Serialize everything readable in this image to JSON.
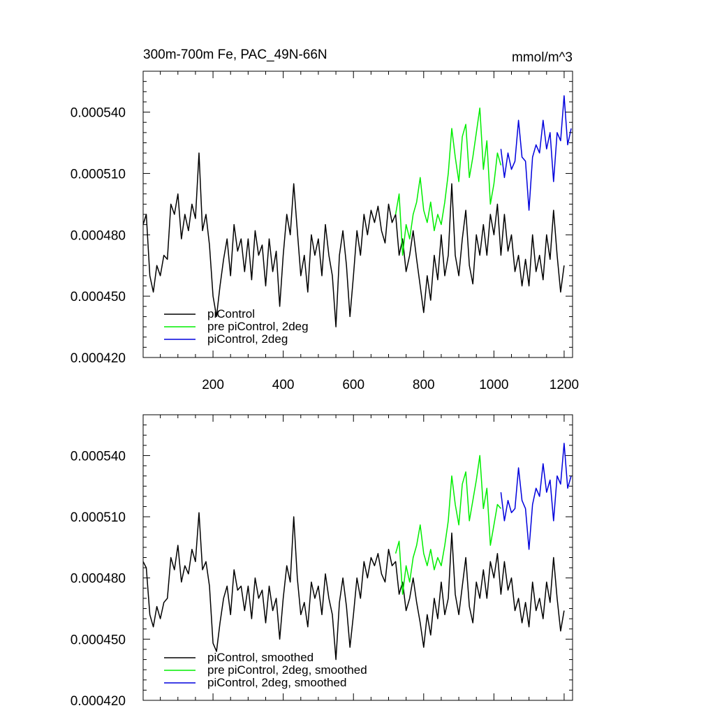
{
  "title_left": "300m-700m Fe, PAC_49N-66N",
  "title_right": "mmol/m^3",
  "colors": {
    "piControl": "#000000",
    "pre": "#00ee00",
    "twodeg": "#0000dd"
  },
  "chart_data": [
    {
      "type": "line",
      "xlim": [
        1,
        1224
      ],
      "ylim": [
        0.00042,
        0.00056
      ],
      "yticks": [
        0.00042,
        0.00045,
        0.00048,
        0.00051,
        0.00054
      ],
      "ytick_labels": [
        "0.000420",
        "0.000450",
        "0.000480",
        "0.000510",
        "0.000540"
      ],
      "xticks": [
        200,
        400,
        600,
        800,
        1000,
        1200
      ],
      "xtick_labels": [
        "200",
        "400",
        "600",
        "800",
        "1000",
        "1200"
      ],
      "legend": [
        "piControl",
        "pre piControl, 2deg",
        "piControl, 2deg"
      ],
      "series": [
        {
          "name": "piControl",
          "color": "#000000",
          "x": [
            1,
            10,
            20,
            30,
            40,
            50,
            60,
            70,
            80,
            90,
            100,
            110,
            120,
            130,
            140,
            150,
            160,
            170,
            180,
            190,
            200,
            210,
            220,
            230,
            240,
            250,
            260,
            270,
            280,
            290,
            300,
            310,
            320,
            330,
            340,
            350,
            360,
            370,
            380,
            390,
            400,
            410,
            420,
            430,
            440,
            450,
            460,
            470,
            480,
            490,
            500,
            510,
            520,
            530,
            540,
            550,
            560,
            570,
            580,
            590,
            600,
            610,
            620,
            630,
            640,
            650,
            660,
            670,
            680,
            690,
            700,
            710,
            720,
            730,
            740,
            750,
            760,
            770,
            780,
            790,
            800,
            810,
            820,
            830,
            840,
            850,
            860,
            870,
            880,
            890,
            900,
            910,
            920,
            930,
            940,
            950,
            960,
            970,
            980,
            990,
            1000,
            1010,
            1020,
            1030,
            1040,
            1050,
            1060,
            1070,
            1080,
            1090,
            1100,
            1110,
            1120,
            1130,
            1140,
            1150,
            1160,
            1170,
            1180,
            1190,
            1200
          ],
          "y": [
            0.000485,
            0.00049,
            0.00046,
            0.000452,
            0.000465,
            0.00046,
            0.00047,
            0.000468,
            0.000495,
            0.00049,
            0.0005,
            0.000478,
            0.00049,
            0.000482,
            0.000495,
            0.000488,
            0.00052,
            0.000482,
            0.00049,
            0.000475,
            0.00045,
            0.00044,
            0.000455,
            0.000468,
            0.000478,
            0.00046,
            0.000485,
            0.000472,
            0.000478,
            0.000462,
            0.000478,
            0.000458,
            0.000482,
            0.00047,
            0.000475,
            0.000455,
            0.000478,
            0.000462,
            0.000472,
            0.000445,
            0.00047,
            0.00049,
            0.00048,
            0.000505,
            0.000482,
            0.00046,
            0.00047,
            0.000452,
            0.00048,
            0.00047,
            0.000478,
            0.00046,
            0.000485,
            0.00047,
            0.00046,
            0.000435,
            0.00047,
            0.000482,
            0.000465,
            0.00044,
            0.00046,
            0.000482,
            0.00047,
            0.00049,
            0.00048,
            0.000492,
            0.000486,
            0.000494,
            0.000482,
            0.000476,
            0.000495,
            0.000486,
            0.00049,
            0.00047,
            0.000478,
            0.000462,
            0.00047,
            0.000482,
            0.000468,
            0.000455,
            0.000442,
            0.00046,
            0.000448,
            0.00047,
            0.000458,
            0.00048,
            0.00046,
            0.00047,
            0.000505,
            0.00047,
            0.00046,
            0.000478,
            0.000492,
            0.000465,
            0.000456,
            0.00048,
            0.00047,
            0.000485,
            0.00047,
            0.00049,
            0.00048,
            0.000495,
            0.00047,
            0.00049,
            0.000472,
            0.00048,
            0.000462,
            0.00047,
            0.000455,
            0.000468,
            0.000455,
            0.00048,
            0.000462,
            0.00047,
            0.000458,
            0.00048,
            0.000468,
            0.000492,
            0.00047,
            0.000452,
            0.000465
          ]
        },
        {
          "name": "pre piControl, 2deg",
          "color": "#00ee00",
          "x": [
            720,
            730,
            740,
            750,
            760,
            770,
            780,
            790,
            800,
            810,
            820,
            830,
            840,
            850,
            860,
            870,
            880,
            890,
            900,
            910,
            920,
            930,
            940,
            950,
            960,
            970,
            980,
            990,
            1000,
            1010,
            1020
          ],
          "y": [
            0.00049,
            0.0005,
            0.00047,
            0.000485,
            0.000478,
            0.00049,
            0.000496,
            0.000508,
            0.000492,
            0.000486,
            0.000496,
            0.000482,
            0.00049,
            0.000485,
            0.000496,
            0.00051,
            0.000532,
            0.000518,
            0.000506,
            0.000528,
            0.000534,
            0.000508,
            0.000518,
            0.00053,
            0.000542,
            0.000512,
            0.000526,
            0.000495,
            0.000505,
            0.00052,
            0.000514
          ]
        },
        {
          "name": "piControl, 2deg",
          "color": "#0000dd",
          "x": [
            1020,
            1030,
            1040,
            1050,
            1060,
            1070,
            1080,
            1090,
            1100,
            1110,
            1120,
            1130,
            1140,
            1150,
            1160,
            1170,
            1180,
            1190,
            1200,
            1210,
            1220
          ],
          "y": [
            0.000522,
            0.000508,
            0.00052,
            0.000512,
            0.000516,
            0.000536,
            0.000518,
            0.000516,
            0.000492,
            0.000518,
            0.000524,
            0.00052,
            0.000536,
            0.000522,
            0.00053,
            0.000506,
            0.00053,
            0.000526,
            0.000548,
            0.000524,
            0.000532
          ]
        }
      ]
    },
    {
      "type": "line",
      "xlim": [
        1,
        1224
      ],
      "ylim": [
        0.00042,
        0.00056
      ],
      "yticks": [
        0.00042,
        0.00045,
        0.00048,
        0.00051,
        0.00054
      ],
      "ytick_labels": [
        "0.000420",
        "0.000450",
        "0.000480",
        "0.000510",
        "0.000540"
      ],
      "xticks": [
        200,
        400,
        600,
        800,
        1000,
        1200
      ],
      "xtick_labels": [],
      "legend": [
        "piControl, smoothed",
        "pre piControl, 2deg, smoothed",
        "piControl, 2deg, smoothed"
      ],
      "series": [
        {
          "name": "piControl, smoothed",
          "color": "#000000",
          "x": [
            1,
            10,
            20,
            30,
            40,
            50,
            60,
            70,
            80,
            90,
            100,
            110,
            120,
            130,
            140,
            150,
            160,
            170,
            180,
            190,
            200,
            210,
            220,
            230,
            240,
            250,
            260,
            270,
            280,
            290,
            300,
            310,
            320,
            330,
            340,
            350,
            360,
            370,
            380,
            390,
            400,
            410,
            420,
            430,
            440,
            450,
            460,
            470,
            480,
            490,
            500,
            510,
            520,
            530,
            540,
            550,
            560,
            570,
            580,
            590,
            600,
            610,
            620,
            630,
            640,
            650,
            660,
            670,
            680,
            690,
            700,
            710,
            720,
            730,
            740,
            750,
            760,
            770,
            780,
            790,
            800,
            810,
            820,
            830,
            840,
            850,
            860,
            870,
            880,
            890,
            900,
            910,
            920,
            930,
            940,
            950,
            960,
            970,
            980,
            990,
            1000,
            1010,
            1020,
            1030,
            1040,
            1050,
            1060,
            1070,
            1080,
            1090,
            1100,
            1110,
            1120,
            1130,
            1140,
            1150,
            1160,
            1170,
            1180,
            1190,
            1200
          ],
          "y": [
            0.000488,
            0.000485,
            0.000462,
            0.000456,
            0.000466,
            0.00046,
            0.000468,
            0.00047,
            0.00049,
            0.000484,
            0.000496,
            0.000478,
            0.000486,
            0.000482,
            0.000494,
            0.000488,
            0.000512,
            0.000484,
            0.000488,
            0.000476,
            0.000448,
            0.000444,
            0.000458,
            0.00047,
            0.000476,
            0.000462,
            0.000484,
            0.000474,
            0.000476,
            0.000464,
            0.000476,
            0.00046,
            0.00048,
            0.00047,
            0.000474,
            0.000458,
            0.000476,
            0.000464,
            0.00047,
            0.00045,
            0.00047,
            0.000486,
            0.000478,
            0.00051,
            0.00048,
            0.000462,
            0.000468,
            0.000456,
            0.000478,
            0.00047,
            0.000476,
            0.000462,
            0.000482,
            0.00047,
            0.000462,
            0.00044,
            0.000468,
            0.00048,
            0.000466,
            0.000446,
            0.000462,
            0.00048,
            0.00047,
            0.000488,
            0.00048,
            0.00049,
            0.000486,
            0.000492,
            0.000482,
            0.000478,
            0.000494,
            0.000486,
            0.000488,
            0.000472,
            0.000478,
            0.000464,
            0.00047,
            0.00048,
            0.000468,
            0.000458,
            0.000446,
            0.000462,
            0.000452,
            0.00047,
            0.00046,
            0.000478,
            0.000462,
            0.00047,
            0.000502,
            0.000472,
            0.000462,
            0.000476,
            0.00049,
            0.000466,
            0.000458,
            0.000478,
            0.00047,
            0.000484,
            0.00047,
            0.000488,
            0.00048,
            0.000492,
            0.000472,
            0.000488,
            0.000474,
            0.00048,
            0.000464,
            0.00047,
            0.000458,
            0.000468,
            0.000456,
            0.000478,
            0.000464,
            0.00047,
            0.00046,
            0.000478,
            0.000468,
            0.00049,
            0.00047,
            0.000454,
            0.000464
          ]
        },
        {
          "name": "pre piControl, 2deg, smoothed",
          "color": "#00ee00",
          "x": [
            720,
            730,
            740,
            750,
            760,
            770,
            780,
            790,
            800,
            810,
            820,
            830,
            840,
            850,
            860,
            870,
            880,
            890,
            900,
            910,
            920,
            930,
            940,
            950,
            960,
            970,
            980,
            990,
            1000,
            1010,
            1020
          ],
          "y": [
            0.000492,
            0.000498,
            0.000472,
            0.000486,
            0.000478,
            0.00049,
            0.000496,
            0.000506,
            0.000492,
            0.000486,
            0.000494,
            0.000484,
            0.00049,
            0.000486,
            0.000496,
            0.000508,
            0.00053,
            0.000516,
            0.000506,
            0.000526,
            0.000532,
            0.000508,
            0.000518,
            0.000528,
            0.00054,
            0.000514,
            0.000524,
            0.000496,
            0.000506,
            0.000516,
            0.000514
          ]
        },
        {
          "name": "piControl, 2deg, smoothed",
          "color": "#0000dd",
          "x": [
            1020,
            1030,
            1040,
            1050,
            1060,
            1070,
            1080,
            1090,
            1100,
            1110,
            1120,
            1130,
            1140,
            1150,
            1160,
            1170,
            1180,
            1190,
            1200,
            1210,
            1220
          ],
          "y": [
            0.000522,
            0.000508,
            0.000518,
            0.000512,
            0.000514,
            0.000534,
            0.000518,
            0.000514,
            0.000494,
            0.000516,
            0.000524,
            0.00052,
            0.000536,
            0.000522,
            0.000528,
            0.000508,
            0.00053,
            0.000526,
            0.000546,
            0.000524,
            0.00053
          ]
        }
      ]
    }
  ]
}
